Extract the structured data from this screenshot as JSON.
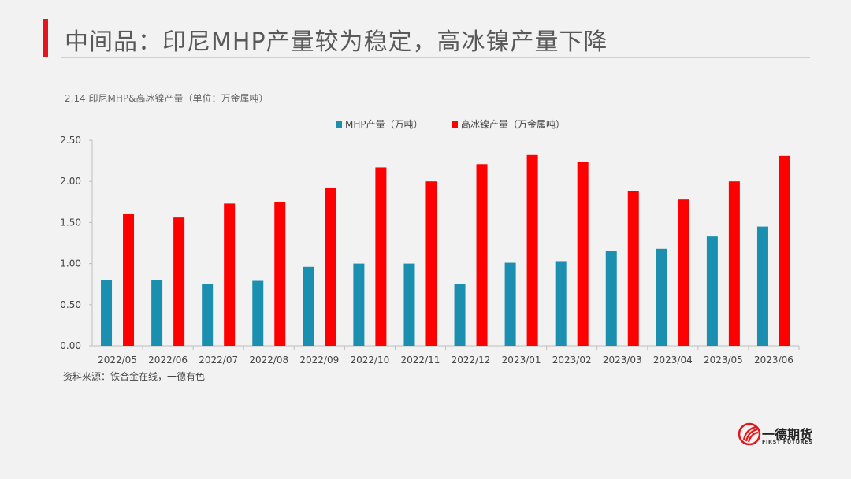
{
  "header": {
    "title": "中间品：印尼MHP产量较为稳定，高冰镍产量下降"
  },
  "chart_caption": "2.14 印尼MHP&高冰镍产量（单位：万金属吨）",
  "colors": {
    "accent": "#e3171b",
    "series_mhp": "#1b8fb0",
    "series_matte": "#ff0000"
  },
  "chart_data": {
    "type": "bar",
    "title": "",
    "xlabel": "",
    "ylabel": "",
    "ylim": [
      0,
      2.5
    ],
    "yticks": [
      "0.00",
      "0.50",
      "1.00",
      "1.50",
      "2.00",
      "2.50"
    ],
    "grid": false,
    "legend_position": "top-center",
    "categories": [
      "2022/05",
      "2022/06",
      "2022/07",
      "2022/08",
      "2022/09",
      "2022/10",
      "2022/11",
      "2022/12",
      "2023/01",
      "2023/02",
      "2023/03",
      "2023/04",
      "2023/05",
      "2023/06"
    ],
    "series": [
      {
        "name": "MHP产量（万吨）",
        "color": "#1b8fb0",
        "values": [
          0.8,
          0.8,
          0.75,
          0.79,
          0.96,
          1.0,
          1.0,
          0.75,
          1.01,
          1.03,
          1.15,
          1.18,
          1.33,
          1.45
        ]
      },
      {
        "name": "高冰镍产量（万金属吨）",
        "color": "#ff0000",
        "values": [
          1.6,
          1.56,
          1.73,
          1.75,
          1.92,
          2.17,
          2.0,
          2.21,
          2.32,
          2.24,
          1.88,
          1.78,
          2.0,
          2.31
        ]
      }
    ]
  },
  "source": "资料来源：铁合金在线，一德有色",
  "logo": {
    "name_cn": "一德期货",
    "name_en": "FIRST FUTURES"
  }
}
